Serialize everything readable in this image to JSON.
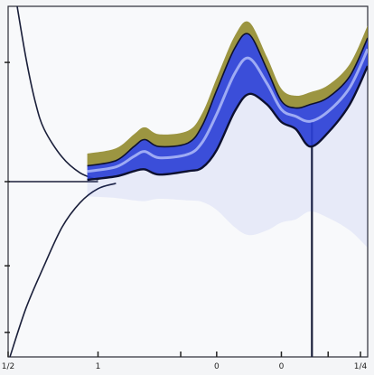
{
  "chart_data": {
    "type": "area",
    "title": "",
    "xlabel": "",
    "ylabel": "",
    "xlim": [
      0,
      10
    ],
    "ylim": [
      -5,
      5
    ],
    "grid": false,
    "legend": "none",
    "x_tick_values": [
      0,
      2.5,
      4.8,
      5.8,
      7.6,
      8.9,
      9.8
    ],
    "x_tick_labels": [
      "1/2",
      "1",
      "",
      "0",
      "0",
      "",
      "1/4"
    ],
    "y_tick_values": [
      3.4,
      0,
      -2.4,
      -4.3
    ],
    "y_tick_labels": [
      "",
      "",
      "",
      ""
    ],
    "series": [
      {
        "role": "curve",
        "color": "#1a1f3a",
        "x": [
          0.25,
          0.5,
          0.75,
          1.0,
          1.5,
          2.0,
          2.5
        ],
        "y": [
          5,
          3.5,
          2.3,
          1.5,
          0.7,
          0.25,
          0.05
        ]
      },
      {
        "role": "curve",
        "color": "#1a1f3a",
        "x": [
          0.05,
          0.5,
          1.0,
          1.5,
          2.0,
          2.5,
          3.0
        ],
        "y": [
          -5,
          -3.6,
          -2.4,
          -1.3,
          -0.6,
          -0.2,
          -0.05
        ]
      },
      {
        "role": "baseline",
        "color": "#1a1f3a",
        "x": [
          0,
          2.5
        ],
        "y": [
          0,
          0
        ]
      },
      {
        "role": "vertical",
        "color": "#1a1f3a",
        "x": [
          8.45,
          8.45
        ],
        "y": [
          -5,
          1.7
        ]
      },
      {
        "role": "band",
        "color": "#2a3fd6",
        "accent": "#8c8420",
        "x": [
          2.2,
          3.0,
          3.5,
          3.8,
          4.2,
          5.0,
          5.4,
          5.8,
          6.3,
          6.7,
          7.2,
          7.6,
          8.0,
          8.4,
          8.9,
          9.5,
          10
        ],
        "upper": [
          0.45,
          0.6,
          1.0,
          1.2,
          1.0,
          1.1,
          1.6,
          2.6,
          3.8,
          4.2,
          3.2,
          2.3,
          2.1,
          2.2,
          2.4,
          3.0,
          4.1
        ],
        "lower": [
          0.05,
          0.15,
          0.3,
          0.35,
          0.2,
          0.3,
          0.4,
          0.9,
          2.0,
          2.5,
          2.2,
          1.7,
          1.5,
          1.0,
          1.4,
          2.2,
          3.3
        ]
      }
    ]
  }
}
